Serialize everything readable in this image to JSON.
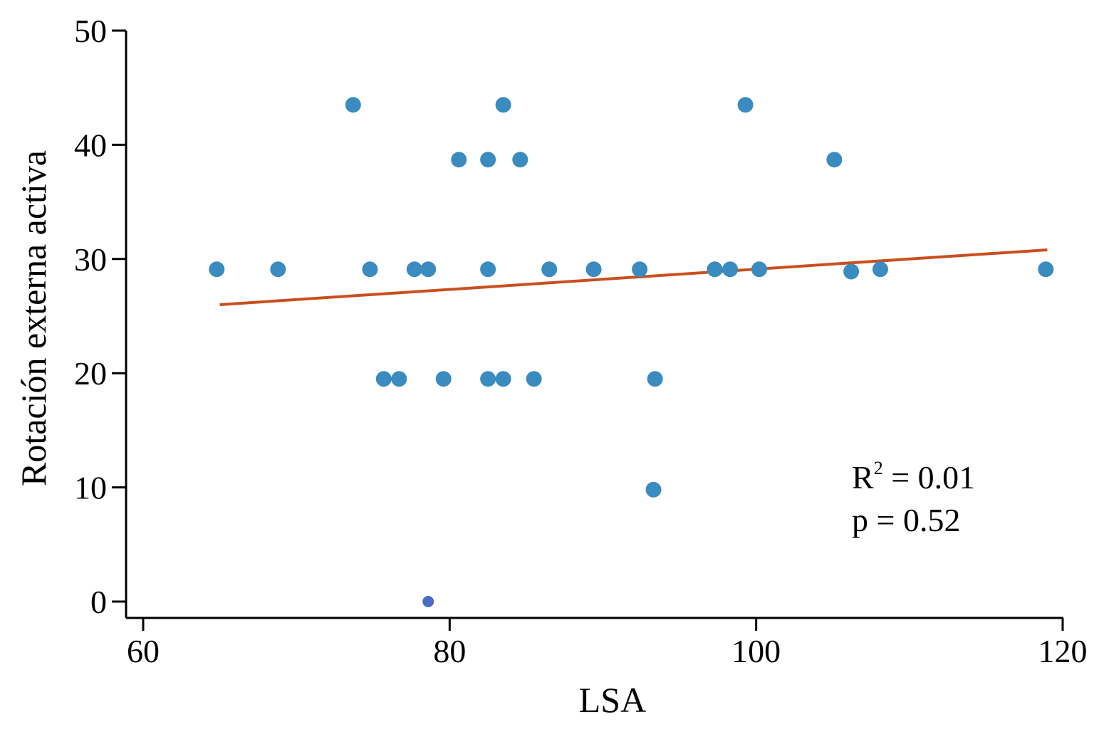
{
  "chart_data": {
    "type": "scatter",
    "title": "",
    "xlabel": "LSA",
    "ylabel": "Rotación externa activa",
    "xlim": [
      60,
      120
    ],
    "ylim": [
      0,
      50
    ],
    "xticks": [
      60,
      80,
      100,
      120
    ],
    "yticks": [
      0,
      10,
      20,
      30,
      40,
      50
    ],
    "grid": false,
    "colors": {
      "points": "#3a8bbf",
      "highlight_point": "#4a6cc4",
      "fit_line": "#c94f1f"
    },
    "points": [
      {
        "x": 64.8,
        "y": 29.1
      },
      {
        "x": 68.8,
        "y": 29.1
      },
      {
        "x": 73.7,
        "y": 43.5
      },
      {
        "x": 74.8,
        "y": 29.1
      },
      {
        "x": 75.7,
        "y": 19.5
      },
      {
        "x": 76.7,
        "y": 19.5
      },
      {
        "x": 77.7,
        "y": 29.1
      },
      {
        "x": 78.6,
        "y": 29.1
      },
      {
        "x": 79.6,
        "y": 19.5
      },
      {
        "x": 80.6,
        "y": 38.7
      },
      {
        "x": 82.5,
        "y": 29.1
      },
      {
        "x": 82.5,
        "y": 38.7
      },
      {
        "x": 82.5,
        "y": 19.5
      },
      {
        "x": 83.5,
        "y": 43.5
      },
      {
        "x": 83.5,
        "y": 19.5
      },
      {
        "x": 84.6,
        "y": 38.7
      },
      {
        "x": 85.5,
        "y": 19.5
      },
      {
        "x": 86.5,
        "y": 29.1
      },
      {
        "x": 89.4,
        "y": 29.1
      },
      {
        "x": 92.4,
        "y": 29.1
      },
      {
        "x": 93.4,
        "y": 19.5
      },
      {
        "x": 93.3,
        "y": 9.8
      },
      {
        "x": 97.3,
        "y": 29.1
      },
      {
        "x": 98.3,
        "y": 29.1
      },
      {
        "x": 99.3,
        "y": 43.5
      },
      {
        "x": 100.2,
        "y": 29.1
      },
      {
        "x": 105.1,
        "y": 38.7
      },
      {
        "x": 106.2,
        "y": 28.9
      },
      {
        "x": 108.1,
        "y": 29.1
      },
      {
        "x": 118.9,
        "y": 29.1
      }
    ],
    "highlight_points": [
      {
        "x": 78.6,
        "y": 0
      }
    ],
    "fit_line": {
      "x": [
        65.0,
        119.0
      ],
      "y": [
        26.0,
        30.8
      ]
    },
    "annotations": {
      "r2_label": "R",
      "r2_sup": "2",
      "r2_value": " = 0.01",
      "p_text": "p = 0.52"
    }
  }
}
